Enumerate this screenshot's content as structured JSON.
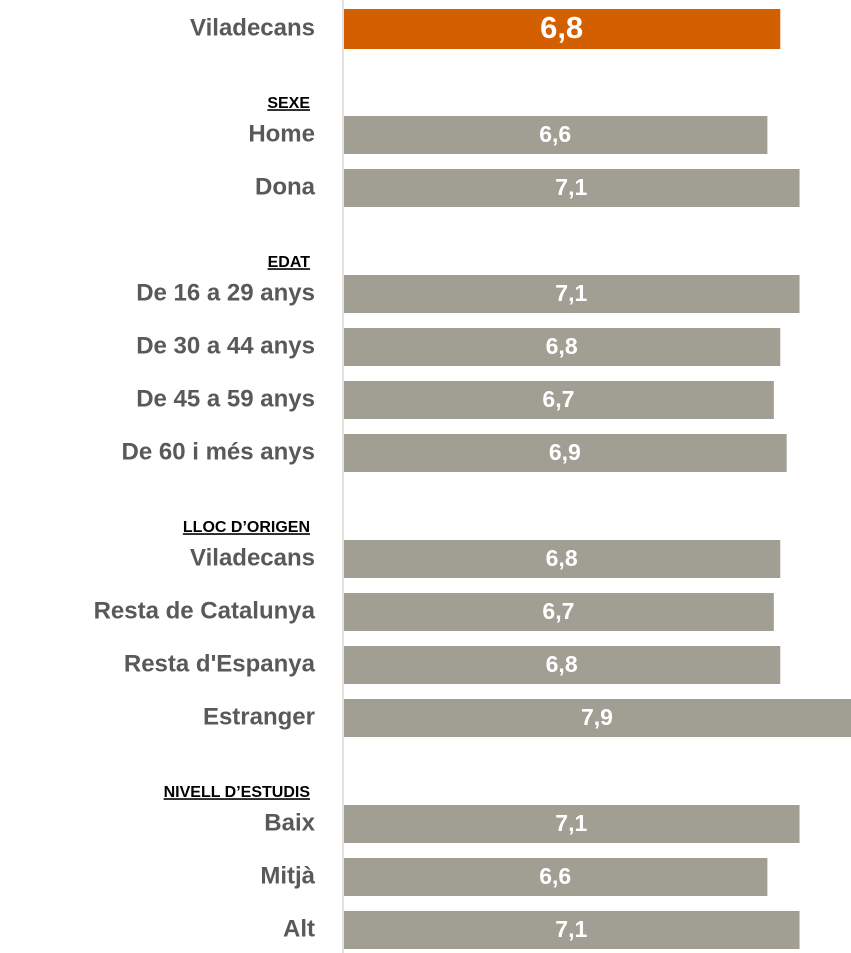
{
  "chart_data": {
    "type": "bar",
    "xlim": [
      0,
      7.9
    ],
    "groups": [
      {
        "categories": [
          "Viladecans"
        ],
        "values": [
          6.8
        ],
        "value_labels": [
          "6,8"
        ],
        "color": "#d45f00"
      },
      {
        "name": "SEXE",
        "categories": [
          "Home",
          "Dona"
        ],
        "values": [
          6.6,
          7.1
        ],
        "value_labels": [
          "6,6",
          "7,1"
        ],
        "color": "#a19f94"
      },
      {
        "name": "EDAT",
        "categories": [
          "De 16 a 29 anys",
          "De 30 a 44 anys",
          "De 45 a 59 anys",
          "De 60 i més anys"
        ],
        "values": [
          7.1,
          6.8,
          6.7,
          6.9
        ],
        "value_labels": [
          "7,1",
          "6,8",
          "6,7",
          "6,9"
        ],
        "color": "#a19f94"
      },
      {
        "name": "LLOC D’ORIGEN",
        "categories": [
          "Viladecans",
          "Resta de Catalunya",
          "Resta d'Espanya",
          "Estranger"
        ],
        "values": [
          6.8,
          6.7,
          6.8,
          7.9
        ],
        "value_labels": [
          "6,8",
          "6,7",
          "6,8",
          "7,9"
        ],
        "color": "#a19f94"
      },
      {
        "name": "NIVELL D’ESTUDIS",
        "categories": [
          "Baix",
          "Mitjà",
          "Alt"
        ],
        "values": [
          7.1,
          6.6,
          7.1
        ],
        "value_labels": [
          "7,1",
          "6,6",
          "7,1"
        ],
        "color": "#a19f94"
      }
    ]
  }
}
